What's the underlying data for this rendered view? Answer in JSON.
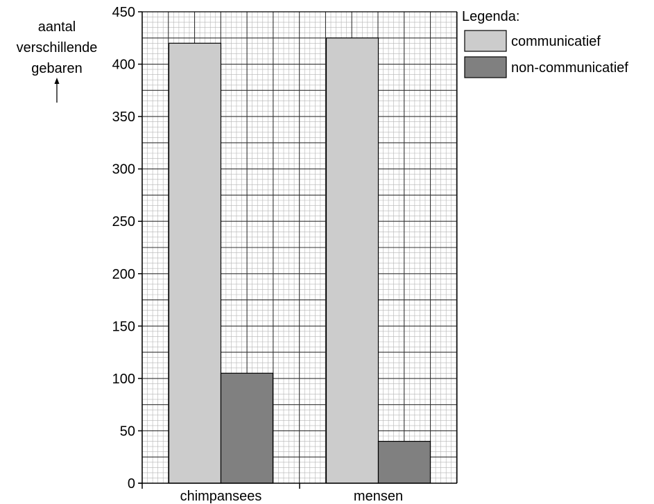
{
  "chart_data": {
    "type": "bar",
    "ylabel_lines": [
      "aantal",
      "verschillende",
      "gebaren"
    ],
    "ylabel_arrow": "↑",
    "categories": [
      "chimpansees",
      "mensen"
    ],
    "series": [
      {
        "name": "communicatief",
        "values": [
          420,
          425
        ],
        "color": "#cccccc"
      },
      {
        "name": "non-communicatief",
        "values": [
          105,
          40
        ],
        "color": "#808080"
      }
    ],
    "ylim": [
      0,
      450
    ],
    "yticks": [
      "0",
      "50",
      "100",
      "150",
      "200",
      "250",
      "300",
      "350",
      "400",
      "450"
    ],
    "ytick_values": [
      0,
      50,
      100,
      150,
      200,
      250,
      300,
      350,
      400,
      450
    ],
    "grid": true,
    "legend": {
      "title": "Legenda:",
      "placement": "top-right"
    }
  }
}
